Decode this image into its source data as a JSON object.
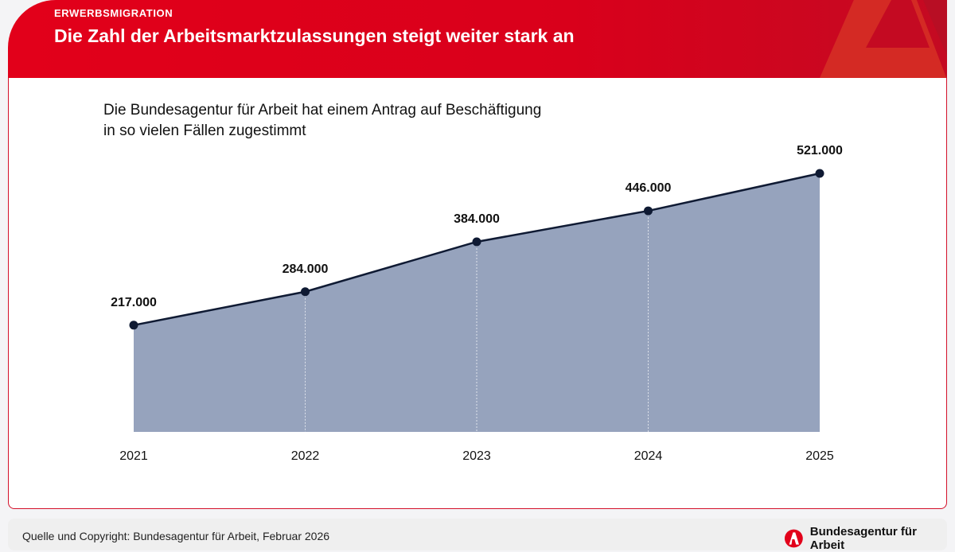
{
  "header": {
    "kicker": "ERWERBSMIGRATION",
    "title": "Die Zahl der Arbeitsmarktzulassungen steigt weiter stark an"
  },
  "chart_data": {
    "type": "area",
    "title": "Die Bundesagentur für Arbeit hat einem Antrag auf Beschäftigung in so vielen Fällen zugestimmt",
    "title_lines": [
      "Die Bundesagentur für Arbeit hat einem Antrag auf Beschäftigung",
      "in so vielen Fällen zugestimmt"
    ],
    "categories": [
      "2021",
      "2022",
      "2023",
      "2024",
      "2025"
    ],
    "values": [
      217000,
      284000,
      384000,
      446000,
      521000
    ],
    "data_labels": [
      "217.000",
      "284.000",
      "384.000",
      "446.000",
      "521.000"
    ],
    "xlabel": "",
    "ylabel": "",
    "ylim": [
      0,
      521000
    ],
    "grid": false,
    "colors": {
      "fill": "#96a3bd",
      "line": "#0f1a33",
      "marker": "#0f1a33"
    }
  },
  "footer": {
    "source": "Quelle und Copyright: Bundesagentur für Arbeit, Februar 2026",
    "logo_text": "Bundesagentur für Arbeit"
  },
  "colors": {
    "brand_red": "#e2001a"
  }
}
